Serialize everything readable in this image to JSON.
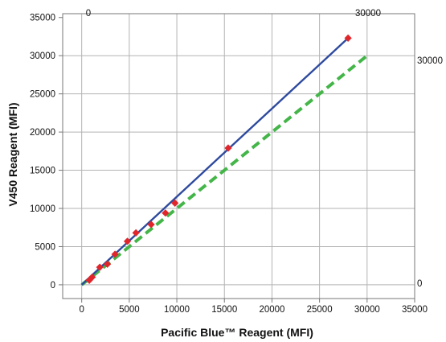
{
  "chart_data": {
    "type": "scatter",
    "title": "",
    "xlabel": "Pacific Blue™ Reagent (MFI)",
    "ylabel": "V450 Reagent (MFI)",
    "xlim": [
      -2000,
      35000
    ],
    "ylim": [
      -1800,
      35500
    ],
    "x_ticks": [
      0,
      5000,
      10000,
      15000,
      20000,
      25000,
      30000,
      35000
    ],
    "y_ticks": [
      0,
      5000,
      10000,
      15000,
      20000,
      25000,
      30000,
      35000
    ],
    "grid": true,
    "legend": "none",
    "annotations": {
      "top_left": "0",
      "top_right": "30000",
      "right_upper": "30000",
      "right_lower": "0"
    },
    "series": [
      {
        "kind": "points",
        "color": "#e0262b",
        "marker": "diamond",
        "points": [
          {
            "x": 800,
            "y": 600
          },
          {
            "x": 1100,
            "y": 1000
          },
          {
            "x": 1900,
            "y": 2300
          },
          {
            "x": 2700,
            "y": 2700
          },
          {
            "x": 3500,
            "y": 4000
          },
          {
            "x": 4800,
            "y": 5700
          },
          {
            "x": 5700,
            "y": 6800
          },
          {
            "x": 7300,
            "y": 7900
          },
          {
            "x": 8800,
            "y": 9400
          },
          {
            "x": 9800,
            "y": 10700
          },
          {
            "x": 15400,
            "y": 17900
          },
          {
            "x": 28000,
            "y": 32300
          }
        ]
      },
      {
        "kind": "fit-line",
        "color": "#2e4a9e",
        "style": "solid",
        "x": [
          0,
          28000
        ],
        "y": [
          0,
          32300
        ]
      },
      {
        "kind": "identity-line",
        "color": "#44b549",
        "style": "dashed",
        "x": [
          0,
          30000
        ],
        "y": [
          0,
          30000
        ]
      }
    ]
  }
}
